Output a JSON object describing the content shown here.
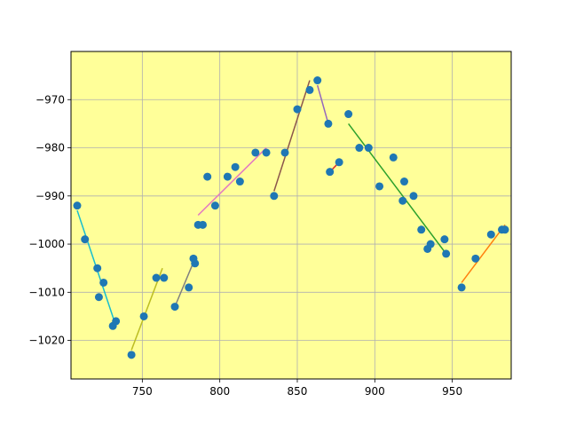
{
  "chart_data": {
    "type": "scatter",
    "title": "",
    "xlabel": "",
    "ylabel": "",
    "xlim": [
      704,
      988
    ],
    "ylim": [
      -1028,
      -960
    ],
    "grid": true,
    "background": "#ffff99",
    "grid_color": "#b0b0b0",
    "point_color": "#1f77b4",
    "x_ticks": [
      750,
      800,
      850,
      900,
      950
    ],
    "y_ticks": [
      -970,
      -980,
      -990,
      -1000,
      -1010,
      -1020
    ],
    "points": [
      [
        708,
        -992
      ],
      [
        713,
        -999
      ],
      [
        721,
        -1005
      ],
      [
        722,
        -1011
      ],
      [
        725,
        -1008
      ],
      [
        731,
        -1017
      ],
      [
        733,
        -1016
      ],
      [
        743,
        -1023
      ],
      [
        751,
        -1015
      ],
      [
        759,
        -1007
      ],
      [
        764,
        -1007
      ],
      [
        771,
        -1013
      ],
      [
        780,
        -1009
      ],
      [
        783,
        -1003
      ],
      [
        784,
        -1004
      ],
      [
        786,
        -996
      ],
      [
        789,
        -996
      ],
      [
        792,
        -986
      ],
      [
        797,
        -992
      ],
      [
        805,
        -986
      ],
      [
        810,
        -984
      ],
      [
        813,
        -987
      ],
      [
        823,
        -981
      ],
      [
        830,
        -981
      ],
      [
        835,
        -990
      ],
      [
        842,
        -981
      ],
      [
        850,
        -972
      ],
      [
        858,
        -968
      ],
      [
        863,
        -966
      ],
      [
        870,
        -975
      ],
      [
        871,
        -985
      ],
      [
        877,
        -983
      ],
      [
        883,
        -973
      ],
      [
        890,
        -980
      ],
      [
        896,
        -980
      ],
      [
        903,
        -988
      ],
      [
        912,
        -982
      ],
      [
        918,
        -991
      ],
      [
        919,
        -987
      ],
      [
        925,
        -990
      ],
      [
        930,
        -997
      ],
      [
        934,
        -1001
      ],
      [
        936,
        -1000
      ],
      [
        945,
        -999
      ],
      [
        946,
        -1002
      ],
      [
        956,
        -1009
      ],
      [
        965,
        -1003
      ],
      [
        975,
        -998
      ],
      [
        982,
        -997
      ],
      [
        984,
        -997
      ]
    ],
    "segments": [
      {
        "color": "#17becf",
        "x": [
          708,
          733
        ],
        "y": [
          -993,
          -1017
        ]
      },
      {
        "color": "#bcbd22",
        "x": [
          743,
          763
        ],
        "y": [
          -1022,
          -1005
        ]
      },
      {
        "color": "#7f7f7f",
        "x": [
          771,
          784
        ],
        "y": [
          -1013,
          -1003
        ]
      },
      {
        "color": "#e377c2",
        "x": [
          786,
          830
        ],
        "y": [
          -994,
          -980
        ]
      },
      {
        "color": "#8c564b",
        "x": [
          835,
          858
        ],
        "y": [
          -989,
          -966
        ]
      },
      {
        "color": "#9467bd",
        "x": [
          863,
          870
        ],
        "y": [
          -967,
          -975
        ]
      },
      {
        "color": "#d62728",
        "x": [
          871,
          877
        ],
        "y": [
          -985,
          -983
        ]
      },
      {
        "color": "#2ca02c",
        "x": [
          883,
          946
        ],
        "y": [
          -975,
          -1002
        ]
      },
      {
        "color": "#ff7f0e",
        "x": [
          956,
          984
        ],
        "y": [
          -1008,
          -996
        ]
      }
    ]
  }
}
